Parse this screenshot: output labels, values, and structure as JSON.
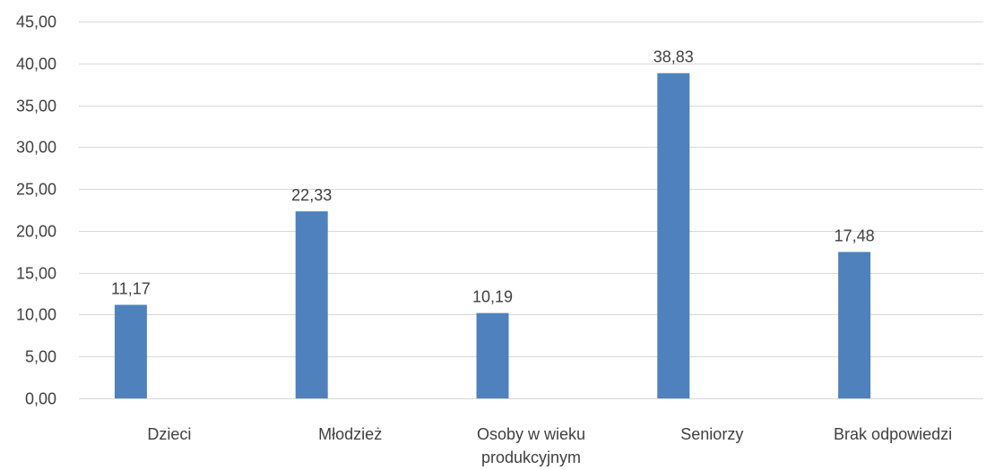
{
  "chart_data": {
    "type": "bar",
    "categories": [
      [
        "Dzieci"
      ],
      [
        "Młodzież"
      ],
      [
        "Osoby w wieku",
        "produkcyjnym"
      ],
      [
        "Seniorzy"
      ],
      [
        "Brak odpowiedzi"
      ]
    ],
    "values": [
      11.17,
      22.33,
      10.19,
      38.83,
      17.48
    ],
    "value_labels": [
      "11,17",
      "22,33",
      "10,19",
      "38,83",
      "17,48"
    ],
    "ylim": [
      0,
      45
    ],
    "yticks": [
      "0,00",
      "5,00",
      "10,00",
      "15,00",
      "20,00",
      "25,00",
      "30,00",
      "35,00",
      "40,00",
      "45,00"
    ],
    "title": "",
    "xlabel": "",
    "ylabel": "",
    "grid": true,
    "legend": "none",
    "colors": {
      "bar": "#4f81bd",
      "grid": "#d9d9d9",
      "text": "#404040"
    }
  }
}
